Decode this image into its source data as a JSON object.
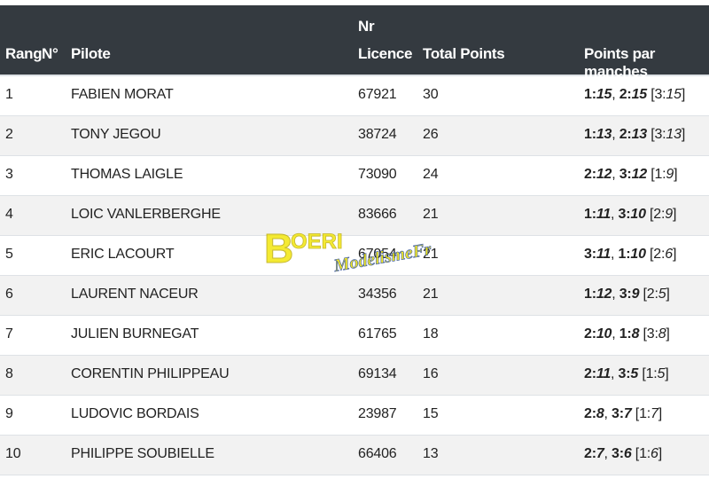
{
  "header": {
    "rang": "Rang",
    "numero": "N°",
    "pilote": "Pilote",
    "licence_top": "Nr",
    "licence_bottom": "Licence",
    "total": "Total Points",
    "manches": "Points par manches"
  },
  "rows": [
    {
      "rang": "1",
      "pilote": "FABIEN MORAT",
      "licence": "67921",
      "total": "30",
      "m1": "1:",
      "v1": "15",
      "m2": "2:",
      "v2": "15",
      "m3": "3:",
      "v3": "15"
    },
    {
      "rang": "2",
      "pilote": "TONY JEGOU",
      "licence": "38724",
      "total": "26",
      "m1": "1:",
      "v1": "13",
      "m2": "2:",
      "v2": "13",
      "m3": "3:",
      "v3": "13"
    },
    {
      "rang": "3",
      "pilote": "THOMAS LAIGLE",
      "licence": "73090",
      "total": "24",
      "m1": "2:",
      "v1": "12",
      "m2": "3:",
      "v2": "12",
      "m3": "1:",
      "v3": "9"
    },
    {
      "rang": "4",
      "pilote": "LOIC VANLERBERGHE",
      "licence": "83666",
      "total": "21",
      "m1": "1:",
      "v1": "11",
      "m2": "3:",
      "v2": "10",
      "m3": "2:",
      "v3": "9"
    },
    {
      "rang": "5",
      "pilote": "ERIC LACOURT",
      "licence": "67054",
      "total": "21",
      "m1": "3:",
      "v1": "11",
      "m2": "1:",
      "v2": "10",
      "m3": "2:",
      "v3": "6"
    },
    {
      "rang": "6",
      "pilote": "LAURENT NACEUR",
      "licence": "34356",
      "total": "21",
      "m1": "1:",
      "v1": "12",
      "m2": "3:",
      "v2": "9",
      "m3": "2:",
      "v3": "5"
    },
    {
      "rang": "7",
      "pilote": "JULIEN BURNEGAT",
      "licence": "61765",
      "total": "18",
      "m1": "2:",
      "v1": "10",
      "m2": "1:",
      "v2": "8",
      "m3": "3:",
      "v3": "8"
    },
    {
      "rang": "8",
      "pilote": "CORENTIN PHILIPPEAU",
      "licence": "69134",
      "total": "16",
      "m1": "2:",
      "v1": "11",
      "m2": "3:",
      "v2": "5",
      "m3": "1:",
      "v3": "5"
    },
    {
      "rang": "9",
      "pilote": "LUDOVIC BORDAIS",
      "licence": "23987",
      "total": "15",
      "m1": "2:",
      "v1": "8",
      "m2": "3:",
      "v2": "7",
      "m3": "1:",
      "v3": "7"
    },
    {
      "rang": "10",
      "pilote": "PHILIPPE SOUBIELLE",
      "licence": "66406",
      "total": "13",
      "m1": "2:",
      "v1": "7",
      "m2": "3:",
      "v2": "6",
      "m3": "1:",
      "v3": "6"
    }
  ],
  "watermark": {
    "brand": "BOERI",
    "sub": "ModelismeFr"
  },
  "colors": {
    "header_bg": "#343a40",
    "stripe": "#f2f2f2",
    "logo_yellow": "#f2e600",
    "logo_blue": "#2a4b9b"
  }
}
